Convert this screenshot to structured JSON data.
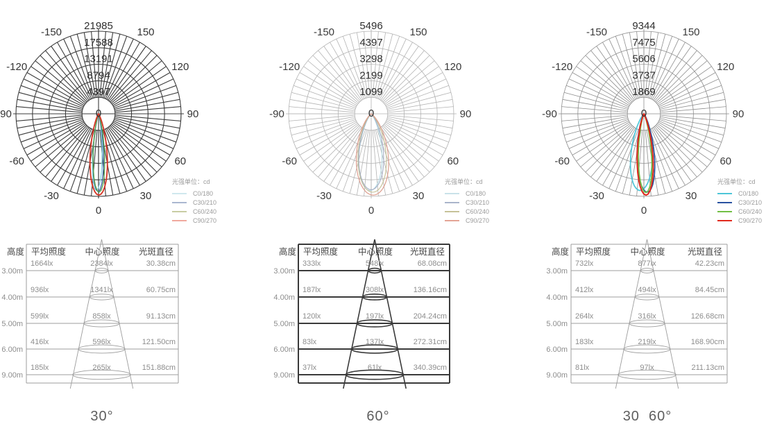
{
  "footer_labels": [
    "30°",
    "60°",
    "30  60°"
  ],
  "chart_data": [
    {
      "type": "polar",
      "name": "beam-30",
      "footer_label": "30°",
      "unit_label": "光强单位：cd",
      "radial_ticks": [
        "21985",
        "17588",
        "13191",
        "8794",
        "4397",
        "0"
      ],
      "angle_ticks": [
        -150,
        -120,
        -90,
        -60,
        -30,
        0,
        30,
        60,
        90,
        120,
        150
      ],
      "style": {
        "grid_color": "#3b3b3b",
        "grid_width": 1.1,
        "label_color": "#333333"
      },
      "legend": [
        {
          "label": "C0/180",
          "color": "#cfe8ee"
        },
        {
          "label": "C30/210",
          "color": "#aab7d0"
        },
        {
          "label": "C60/240",
          "color": "#c8cda3"
        },
        {
          "label": "C90/270",
          "color": "#f0a99e"
        }
      ],
      "series": [
        {
          "name": "C0/180",
          "color": "#85d0e2",
          "beam": 14,
          "tilt": -1.6,
          "peak": 0.93,
          "width": 1.3
        },
        {
          "name": "C30/210",
          "color": "#3a63a8",
          "beam": 15,
          "tilt": -0.3,
          "peak": 0.945,
          "width": 1.3
        },
        {
          "name": "C60/240",
          "color": "#55a245",
          "beam": 16.5,
          "tilt": 0.4,
          "peak": 0.95,
          "width": 1.3
        },
        {
          "name": "C90/270",
          "color": "#d53728",
          "beam": 24,
          "tilt": 0.2,
          "peak": 0.985,
          "width": 1.9
        }
      ]
    },
    {
      "type": "polar",
      "name": "beam-60",
      "footer_label": "60°",
      "unit_label": "光强单位：cd",
      "radial_ticks": [
        "5496",
        "4397",
        "3298",
        "2199",
        "1099",
        "0"
      ],
      "angle_ticks": [
        -150,
        -120,
        -90,
        -60,
        -30,
        0,
        30,
        60,
        90,
        120,
        150
      ],
      "style": {
        "grid_color": "#b3b3b3",
        "grid_width": 0.8,
        "label_color": "#3a3a3a"
      },
      "legend": [
        {
          "label": "C0/180",
          "color": "#c9e2e9"
        },
        {
          "label": "C30/210",
          "color": "#a9b4ca"
        },
        {
          "label": "C60/240",
          "color": "#c6c298"
        },
        {
          "label": "C90/270",
          "color": "#e4a495"
        }
      ],
      "series": [
        {
          "name": "C0/180",
          "color": "#b5d9e2",
          "beam": 34,
          "tilt": -1,
          "peak": 0.93,
          "width": 1.1
        },
        {
          "name": "C30/210",
          "color": "#a3aec6",
          "beam": 37,
          "tilt": 0,
          "peak": 0.92,
          "width": 1.1
        },
        {
          "name": "C60/240",
          "color": "#c5c096",
          "beam": 41,
          "tilt": 1.2,
          "peak": 0.95,
          "width": 1.1
        },
        {
          "name": "C90/270",
          "color": "#dd9e8e",
          "beam": 45,
          "tilt": 1.5,
          "peak": 0.985,
          "width": 1.2
        }
      ]
    },
    {
      "type": "polar",
      "name": "beam-30-60",
      "footer_label": "30  60°",
      "unit_label": "光强单位：cd",
      "radial_ticks": [
        "9344",
        "7475",
        "5606",
        "3737",
        "1869",
        "0"
      ],
      "angle_ticks": [
        -150,
        -120,
        -90,
        -60,
        -30,
        0,
        30,
        60,
        90,
        120,
        150
      ],
      "style": {
        "grid_color": "#8e8e8e",
        "grid_width": 0.8,
        "label_color": "#3a3a3a"
      },
      "legend": [
        {
          "label": "C0/180",
          "color": "#4cc5d8"
        },
        {
          "label": "C30/210",
          "color": "#2952a0"
        },
        {
          "label": "C60/240",
          "color": "#72bf44"
        },
        {
          "label": "C90/270",
          "color": "#e1291d"
        }
      ],
      "series": [
        {
          "name": "C0/180",
          "color": "#4cc5d8",
          "beam": 32,
          "tilt": -3,
          "peak": 0.93,
          "width": 1.7
        },
        {
          "name": "C30/210",
          "color": "#2952a0",
          "beam": 25,
          "tilt": 2.5,
          "peak": 0.95,
          "width": 1.7
        },
        {
          "name": "C60/240",
          "color": "#72bf44",
          "beam": 19,
          "tilt": 1.5,
          "peak": 0.955,
          "width": 1.7
        },
        {
          "name": "C90/270",
          "color": "#e1291d",
          "beam": 22,
          "tilt": 1.5,
          "peak": 0.985,
          "width": 2
        }
      ]
    },
    {
      "type": "table",
      "name": "illuminance-30",
      "headers": [
        "高度",
        "平均照度",
        "中心照度",
        "光斑直径"
      ],
      "rows": [
        [
          "3.00m",
          "1664lx",
          "2384lx",
          "30.38cm"
        ],
        [
          "4.00m",
          "936lx",
          "1341lx",
          "60.75cm"
        ],
        [
          "5.00m",
          "599lx",
          "858lx",
          "91.13cm"
        ],
        [
          "6.00m",
          "416lx",
          "596lx",
          "121.50cm"
        ],
        [
          "9.00m",
          "185lx",
          "265lx",
          "151.88cm"
        ]
      ],
      "style": {
        "line_color": "#9c9c9c",
        "line_width": 1,
        "header_color": "#4a4a4a",
        "value_color": "#8d8d8d"
      }
    },
    {
      "type": "table",
      "name": "illuminance-60",
      "headers": [
        "高度",
        "平均照度",
        "中心照度",
        "光斑直径"
      ],
      "rows": [
        [
          "3.00m",
          "333lx",
          "548lx",
          "68.08cm"
        ],
        [
          "4.00m",
          "187lx",
          "308lx",
          "136.16cm"
        ],
        [
          "5.00m",
          "120lx",
          "197lx",
          "204.24cm"
        ],
        [
          "6.00m",
          "83lx",
          "137lx",
          "272.31cm"
        ],
        [
          "9.00m",
          "37lx",
          "61lx",
          "340.39cm"
        ]
      ],
      "style": {
        "line_color": "#3a3a3a",
        "line_width": 2,
        "header_color": "#444444",
        "value_color": "#8d8d8d"
      }
    },
    {
      "type": "table",
      "name": "illuminance-30-60",
      "headers": [
        "高度",
        "平均照度",
        "中心照度",
        "光斑直径"
      ],
      "rows": [
        [
          "3.00m",
          "732lx",
          "877lx",
          "42.23cm"
        ],
        [
          "4.00m",
          "412lx",
          "494lx",
          "84.45cm"
        ],
        [
          "5.00m",
          "264lx",
          "316lx",
          "126.68cm"
        ],
        [
          "6.00m",
          "183lx",
          "219lx",
          "168.90cm"
        ],
        [
          "9.00m",
          "81lx",
          "97lx",
          "211.13cm"
        ]
      ],
      "style": {
        "line_color": "#9c9c9c",
        "line_width": 1,
        "header_color": "#4a4a4a",
        "value_color": "#8d8d8d"
      }
    }
  ]
}
